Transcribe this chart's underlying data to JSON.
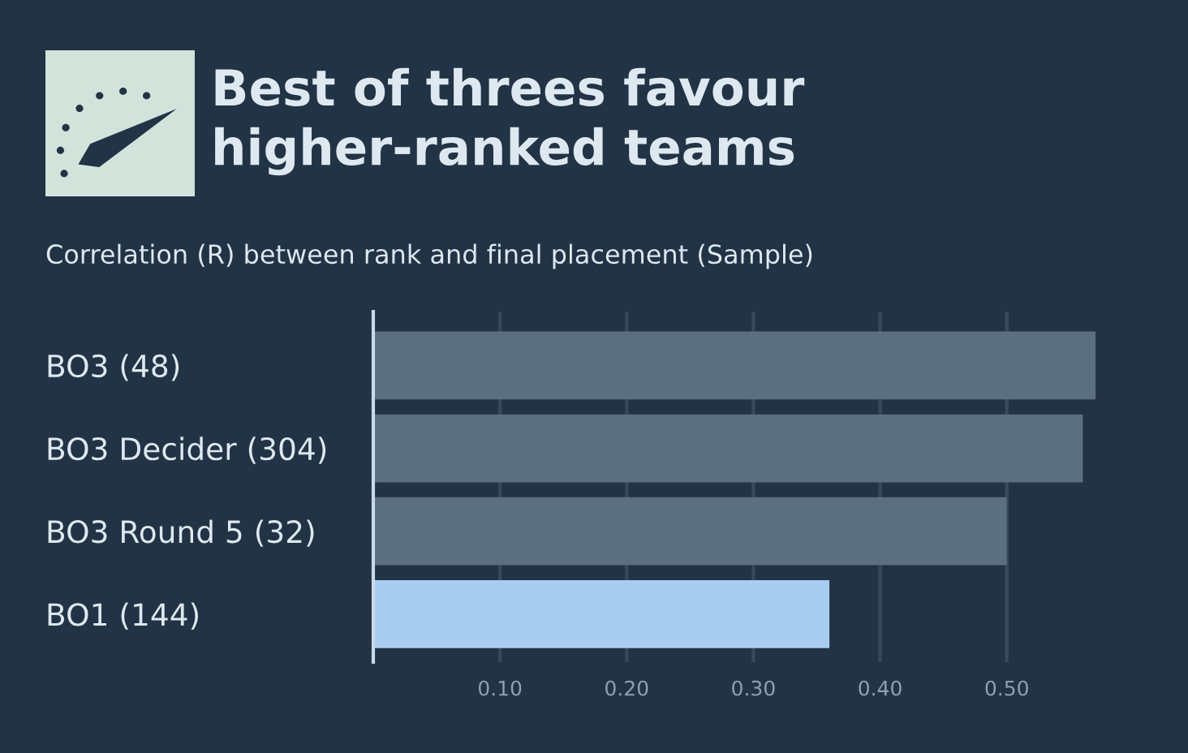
{
  "chart_data": {
    "type": "bar",
    "orientation": "horizontal",
    "title": "Best of threes favour\nhigher-ranked teams",
    "subtitle": "Correlation (R) between rank and final placement (Sample)",
    "categories": [
      "BO3 (48)",
      "BO3 Decider (304)",
      "BO3 Round 5 (32)",
      "BO1 (144)"
    ],
    "values": [
      0.57,
      0.56,
      0.5,
      0.36
    ],
    "colors": [
      "#5b6f80",
      "#5b6f80",
      "#5b6f80",
      "#a9cdf0"
    ],
    "xlim": [
      0,
      0.57
    ],
    "xticks": [
      {
        "value": 0.1,
        "label": "0.10"
      },
      {
        "value": 0.2,
        "label": "0.20"
      },
      {
        "value": 0.3,
        "label": "0.30"
      },
      {
        "value": 0.4,
        "label": "0.40"
      },
      {
        "value": 0.5,
        "label": "0.50"
      }
    ],
    "grid": "x",
    "legend": false
  }
}
